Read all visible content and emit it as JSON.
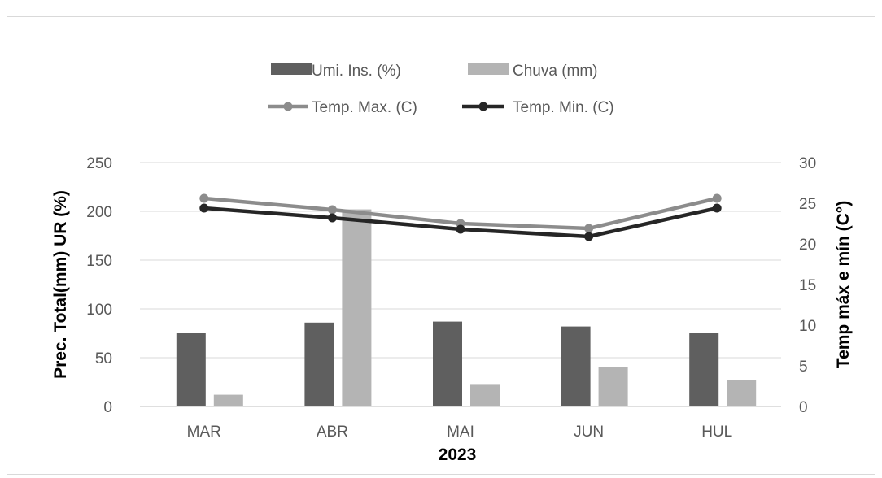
{
  "chart_data": {
    "type": "bar",
    "categories": [
      "MAR",
      "ABR",
      "MAI",
      "JUN",
      "HUL"
    ],
    "xlabel": "2023",
    "ylabel_left": "Prec. Total(mm) UR (%)",
    "ylabel_right": "Temp máx e mín (C°)",
    "ylim_left": [
      0,
      250
    ],
    "ylim_right": [
      0,
      30
    ],
    "yticks_left": [
      "0",
      "50",
      "100",
      "150",
      "200",
      "250"
    ],
    "yticks_right": [
      "0",
      "5",
      "10",
      "15",
      "20",
      "25",
      "30"
    ],
    "grid": true,
    "legend_position": "top",
    "series": [
      {
        "name": "Umi. Ins. (%)",
        "kind": "bar",
        "axis": "left",
        "color": "#5f5f5f",
        "values": [
          75,
          86,
          87,
          82,
          75
        ]
      },
      {
        "name": "Chuva (mm)",
        "kind": "bar",
        "axis": "left",
        "color": "#b4b4b4",
        "values": [
          12,
          202,
          23,
          40,
          27
        ]
      },
      {
        "name": "Temp. Max. (C)",
        "kind": "line",
        "axis": "right",
        "color": "#8c8c8c",
        "values": [
          25.6,
          24.2,
          22.5,
          21.9,
          25.6
        ]
      },
      {
        "name": "Temp. Min. (C)",
        "kind": "line",
        "axis": "right",
        "color": "#262626",
        "values": [
          24.4,
          23.2,
          21.8,
          20.9,
          24.4
        ]
      }
    ]
  }
}
